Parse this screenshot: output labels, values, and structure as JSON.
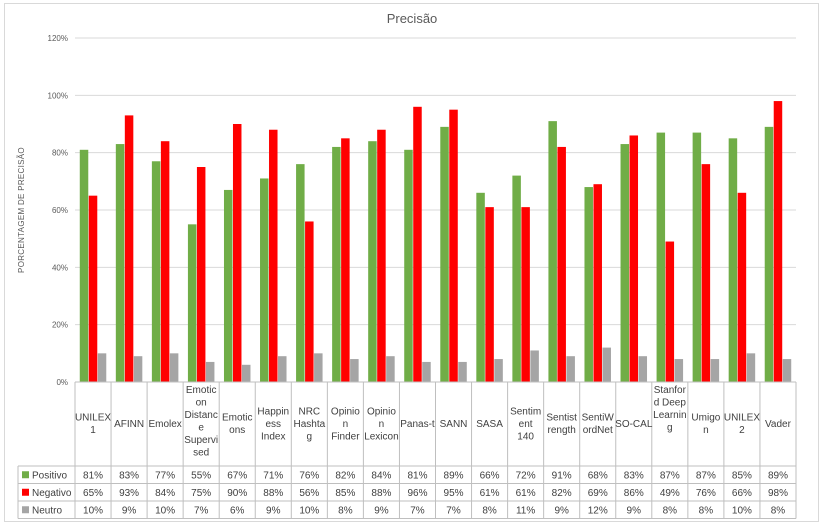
{
  "chart_data": {
    "type": "bar",
    "title": "Precisão",
    "ylabel": "PORCENTAGEM DE PRECISÃO",
    "ylim": [
      0,
      120
    ],
    "yticks": [
      "0%",
      "20%",
      "40%",
      "60%",
      "80%",
      "100%",
      "120%"
    ],
    "grid": true,
    "legend": "data-table-bottom",
    "categories": [
      [
        "UNILEX",
        "1"
      ],
      [
        "AFINN"
      ],
      [
        "Emolex"
      ],
      [
        "Emotic",
        "on",
        "Distanc",
        "e",
        "Supervi",
        "sed"
      ],
      [
        "Emotic",
        "ons"
      ],
      [
        "Happin",
        "ess",
        "Index"
      ],
      [
        "NRC",
        "Hashta",
        "g"
      ],
      [
        "Opinio",
        "n",
        "Finder"
      ],
      [
        "Opinio",
        "n",
        "Lexicon"
      ],
      [
        "Panas-t"
      ],
      [
        "SANN"
      ],
      [
        "SASA"
      ],
      [
        "Sentim",
        "ent",
        "140"
      ],
      [
        "Sentist",
        "rength"
      ],
      [
        "SentiW",
        "ordNet"
      ],
      [
        "SO-CAL"
      ],
      [
        "Stanfor",
        "d Deep",
        "Learnin",
        "g"
      ],
      [
        "Umigo",
        "n"
      ],
      [
        "UNILEX",
        "2"
      ],
      [
        "Vader"
      ]
    ],
    "series": [
      {
        "name": "Positivo",
        "color": "#70ad47",
        "values": [
          81,
          83,
          77,
          55,
          67,
          71,
          76,
          82,
          84,
          81,
          89,
          66,
          72,
          91,
          68,
          83,
          87,
          87,
          85,
          89
        ],
        "labels": [
          "81%",
          "83%",
          "77%",
          "55%",
          "67%",
          "71%",
          "76%",
          "82%",
          "84%",
          "81%",
          "89%",
          "66%",
          "72%",
          "91%",
          "68%",
          "83%",
          "87%",
          "87%",
          "85%",
          "89%"
        ]
      },
      {
        "name": "Negativo",
        "color": "#ff0000",
        "values": [
          65,
          93,
          84,
          75,
          90,
          88,
          56,
          85,
          88,
          96,
          95,
          61,
          61,
          82,
          69,
          86,
          49,
          76,
          66,
          98
        ],
        "labels": [
          "65%",
          "93%",
          "84%",
          "75%",
          "90%",
          "88%",
          "56%",
          "85%",
          "88%",
          "96%",
          "95%",
          "61%",
          "61%",
          "82%",
          "69%",
          "86%",
          "49%",
          "76%",
          "66%",
          "98%"
        ]
      },
      {
        "name": "Neutro",
        "color": "#a5a5a5",
        "values": [
          10,
          9,
          10,
          7,
          6,
          9,
          10,
          8,
          9,
          7,
          7,
          8,
          11,
          9,
          12,
          9,
          8,
          8,
          10,
          8
        ],
        "labels": [
          "10%",
          "9%",
          "10%",
          "7%",
          "6%",
          "9%",
          "10%",
          "8%",
          "9%",
          "7%",
          "7%",
          "8%",
          "11%",
          "9%",
          "12%",
          "9%",
          "8%",
          "8%",
          "10%",
          "8%"
        ]
      }
    ]
  }
}
